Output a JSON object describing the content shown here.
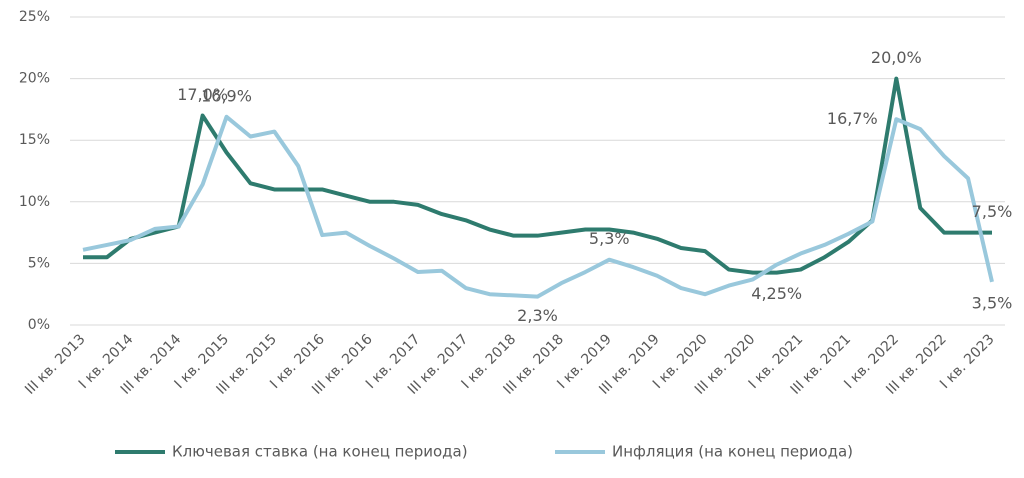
{
  "chart_data": {
    "type": "line",
    "categories": [
      "III кв. 2013",
      null,
      "I кв. 2014",
      null,
      "III кв. 2014",
      null,
      "I кв. 2015",
      null,
      "III кв. 2015",
      null,
      "I кв. 2016",
      null,
      "III кв. 2016",
      null,
      "I кв. 2017",
      null,
      "III кв. 2017",
      null,
      "I кв. 2018",
      null,
      "III кв. 2018",
      null,
      "I кв. 2019",
      null,
      "III кв. 2019",
      null,
      "I кв. 2020",
      null,
      "III кв. 2020",
      null,
      "I кв. 2021",
      null,
      "III кв. 2021",
      null,
      "I кв. 2022",
      null,
      "III кв. 2022",
      null,
      "I кв. 2023"
    ],
    "series": [
      {
        "name": "Ключевая ставка (на конец периода)",
        "color": "#2e7b6e",
        "values": [
          5.5,
          5.5,
          7.0,
          7.5,
          8.0,
          17.0,
          14.0,
          11.5,
          11.0,
          11.0,
          11.0,
          10.5,
          10.0,
          10.0,
          9.75,
          9.0,
          8.5,
          7.75,
          7.25,
          7.25,
          7.5,
          7.75,
          7.75,
          7.5,
          7.0,
          6.25,
          6.0,
          4.5,
          4.25,
          4.25,
          4.5,
          5.5,
          6.75,
          8.5,
          20.0,
          9.5,
          7.5,
          7.5,
          7.5
        ],
        "value_labels": [
          null,
          null,
          null,
          null,
          null,
          "17,0%",
          null,
          null,
          null,
          null,
          null,
          null,
          null,
          null,
          null,
          null,
          null,
          null,
          null,
          null,
          null,
          null,
          null,
          null,
          null,
          null,
          null,
          null,
          null,
          "4,25%",
          null,
          null,
          null,
          null,
          "20,0%",
          null,
          null,
          null,
          "7,5%"
        ]
      },
      {
        "name": "Инфляция (на конец периода)",
        "color": "#99c8dc",
        "values": [
          6.1,
          6.5,
          6.9,
          7.8,
          8.0,
          11.4,
          16.9,
          15.3,
          15.7,
          12.9,
          7.3,
          7.5,
          6.4,
          5.4,
          4.3,
          4.4,
          3.0,
          2.5,
          2.4,
          2.3,
          3.4,
          4.3,
          5.3,
          4.7,
          4.0,
          3.0,
          2.5,
          3.2,
          3.7,
          4.9,
          5.8,
          6.5,
          7.4,
          8.4,
          16.7,
          15.9,
          13.7,
          11.9,
          3.5
        ],
        "value_labels": [
          null,
          null,
          null,
          null,
          null,
          null,
          "16,9%",
          null,
          null,
          null,
          null,
          null,
          null,
          null,
          null,
          null,
          null,
          null,
          null,
          "2,3%",
          null,
          null,
          "5,3%",
          null,
          null,
          null,
          null,
          null,
          null,
          null,
          null,
          null,
          null,
          null,
          "16,7%",
          null,
          null,
          null,
          "3,5%"
        ]
      }
    ],
    "ylim": [
      0,
      25
    ],
    "yticks": [
      {
        "value": 0,
        "label": "0%"
      },
      {
        "value": 5,
        "label": "5%"
      },
      {
        "value": 10,
        "label": "10%"
      },
      {
        "value": 15,
        "label": "15%"
      },
      {
        "value": 20,
        "label": "20%"
      },
      {
        "value": 25,
        "label": "25%"
      }
    ],
    "grid": true,
    "legend": "bottom"
  }
}
